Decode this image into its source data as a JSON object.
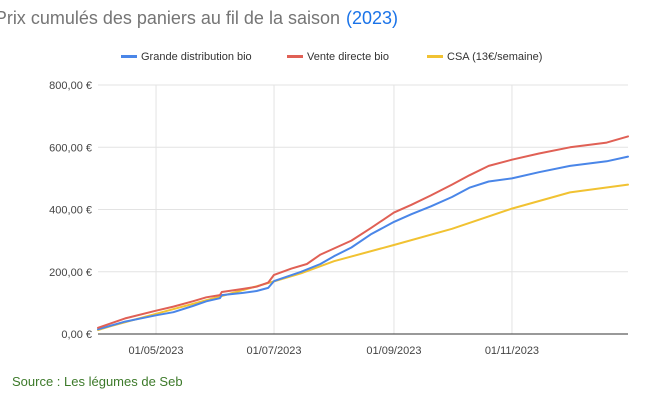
{
  "chart_data": {
    "type": "line",
    "title": "Prix cumulés des paniers au fil de la saison",
    "title_suffix": "(2023)",
    "xlabel": "",
    "ylabel": "",
    "x_range": [
      "2023-04-01",
      "2023-12-31"
    ],
    "ylim": [
      0,
      800
    ],
    "y_ticks": [
      0,
      200,
      400,
      600,
      800
    ],
    "y_tick_labels": [
      "0,00 €",
      "200,00 €",
      "400,00 €",
      "600,00 €",
      "800,00 €"
    ],
    "x_ticks": [
      "2023-05-01",
      "2023-07-01",
      "2023-09-01",
      "2023-11-01"
    ],
    "x_tick_labels": [
      "01/05/2023",
      "01/07/2023",
      "01/09/2023",
      "01/11/2023"
    ],
    "grid": true,
    "legend_position": "top",
    "series": [
      {
        "name": "Grande distribution bio",
        "color": "#4a86e8",
        "points": [
          [
            "2023-04-01",
            15
          ],
          [
            "2023-04-15",
            40
          ],
          [
            "2023-05-01",
            60
          ],
          [
            "2023-05-10",
            70
          ],
          [
            "2023-05-20",
            90
          ],
          [
            "2023-05-27",
            105
          ],
          [
            "2023-06-03",
            115
          ],
          [
            "2023-06-04",
            125
          ],
          [
            "2023-06-15",
            132
          ],
          [
            "2023-06-22",
            138
          ],
          [
            "2023-06-28",
            148
          ],
          [
            "2023-07-01",
            170
          ],
          [
            "2023-07-15",
            200
          ],
          [
            "2023-07-25",
            225
          ],
          [
            "2023-08-01",
            250
          ],
          [
            "2023-08-10",
            278
          ],
          [
            "2023-08-20",
            320
          ],
          [
            "2023-09-01",
            360
          ],
          [
            "2023-09-10",
            385
          ],
          [
            "2023-09-20",
            410
          ],
          [
            "2023-10-01",
            440
          ],
          [
            "2023-10-10",
            470
          ],
          [
            "2023-10-20",
            490
          ],
          [
            "2023-11-01",
            500
          ],
          [
            "2023-11-15",
            520
          ],
          [
            "2023-12-01",
            540
          ],
          [
            "2023-12-20",
            555
          ],
          [
            "2023-12-31",
            570
          ]
        ]
      },
      {
        "name": "Vente directe bio",
        "color": "#e06055",
        "points": [
          [
            "2023-04-01",
            20
          ],
          [
            "2023-04-15",
            50
          ],
          [
            "2023-05-01",
            75
          ],
          [
            "2023-05-10",
            88
          ],
          [
            "2023-05-20",
            105
          ],
          [
            "2023-05-27",
            118
          ],
          [
            "2023-06-03",
            125
          ],
          [
            "2023-06-04",
            135
          ],
          [
            "2023-06-15",
            145
          ],
          [
            "2023-06-22",
            152
          ],
          [
            "2023-06-28",
            165
          ],
          [
            "2023-07-01",
            190
          ],
          [
            "2023-07-10",
            210
          ],
          [
            "2023-07-18",
            225
          ],
          [
            "2023-07-25",
            255
          ],
          [
            "2023-08-10",
            300
          ],
          [
            "2023-08-20",
            340
          ],
          [
            "2023-09-01",
            390
          ],
          [
            "2023-09-10",
            415
          ],
          [
            "2023-09-20",
            445
          ],
          [
            "2023-10-01",
            480
          ],
          [
            "2023-10-10",
            510
          ],
          [
            "2023-10-20",
            540
          ],
          [
            "2023-11-01",
            560
          ],
          [
            "2023-11-15",
            580
          ],
          [
            "2023-12-01",
            600
          ],
          [
            "2023-12-20",
            615
          ],
          [
            "2023-12-31",
            635
          ]
        ]
      },
      {
        "name": "CSA (13€/semaine)",
        "color": "#f1c232",
        "points": [
          [
            "2023-04-01",
            13
          ],
          [
            "2023-04-08",
            26
          ],
          [
            "2023-05-01",
            65
          ],
          [
            "2023-06-01",
            117
          ],
          [
            "2023-07-01",
            169
          ],
          [
            "2023-07-15",
            195
          ],
          [
            "2023-08-01",
            234
          ],
          [
            "2023-09-01",
            286
          ],
          [
            "2023-10-01",
            338
          ],
          [
            "2023-11-01",
            403
          ],
          [
            "2023-12-01",
            455
          ],
          [
            "2023-12-31",
            480
          ]
        ]
      }
    ]
  },
  "source_caption": "Source : Les légumes de Seb"
}
